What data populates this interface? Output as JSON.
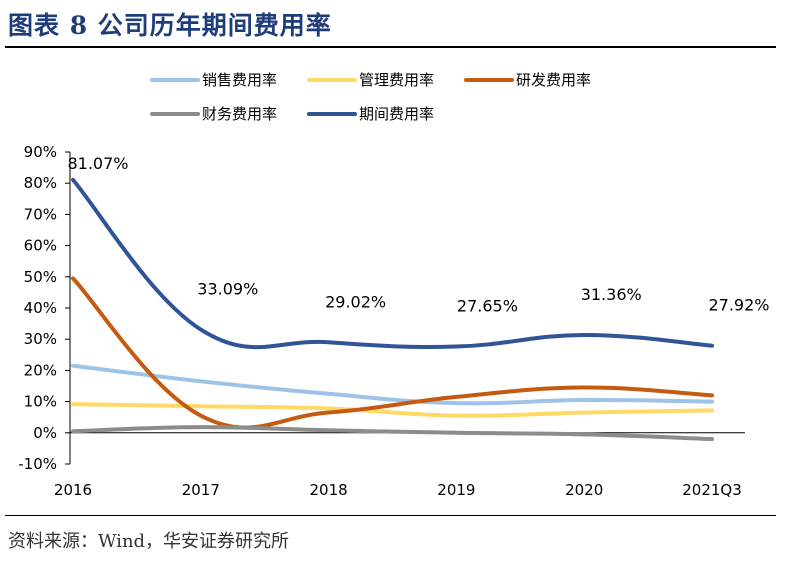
{
  "figure": {
    "title": "图表 8 公司历年期间费用率",
    "source": "资料来源：Wind，华安证券研究所"
  },
  "chart_data": {
    "type": "line",
    "title": "公司历年期间费用率",
    "xlabel": "",
    "ylabel": "",
    "categories": [
      "2016",
      "2017",
      "2018",
      "2019",
      "2020",
      "2021Q3"
    ],
    "ylim": [
      -10,
      90
    ],
    "yticks": [
      "-10%",
      "0%",
      "10%",
      "20%",
      "30%",
      "40%",
      "50%",
      "60%",
      "70%",
      "80%",
      "90%"
    ],
    "ytick_values": [
      -10,
      0,
      10,
      20,
      30,
      40,
      50,
      60,
      70,
      80,
      90
    ],
    "legend_position": "top",
    "smooth": true,
    "series": [
      {
        "name": "销售费用率",
        "color": "#9dc3e6",
        "values": [
          21.5,
          16.5,
          12.5,
          9.5,
          10.5,
          10.0
        ]
      },
      {
        "name": "管理费用率",
        "color": "#ffd966",
        "values": [
          9.2,
          8.5,
          7.8,
          5.5,
          6.5,
          7.2
        ]
      },
      {
        "name": "研发费用率",
        "color": "#c55a11",
        "values": [
          49.5,
          5.5,
          6.5,
          11.5,
          14.5,
          12.0
        ]
      },
      {
        "name": "财务费用率",
        "color": "#8c8c8c",
        "values": [
          0.5,
          1.8,
          0.8,
          0.0,
          -0.5,
          -2.0
        ]
      },
      {
        "name": "期间费用率",
        "color": "#2f5597",
        "values": [
          81.07,
          33.09,
          29.02,
          27.65,
          31.36,
          27.92
        ]
      }
    ],
    "data_labels": {
      "series": "期间费用率",
      "labels": [
        "81.07%",
        "33.09%",
        "29.02%",
        "27.65%",
        "31.36%",
        "27.92%"
      ]
    }
  }
}
